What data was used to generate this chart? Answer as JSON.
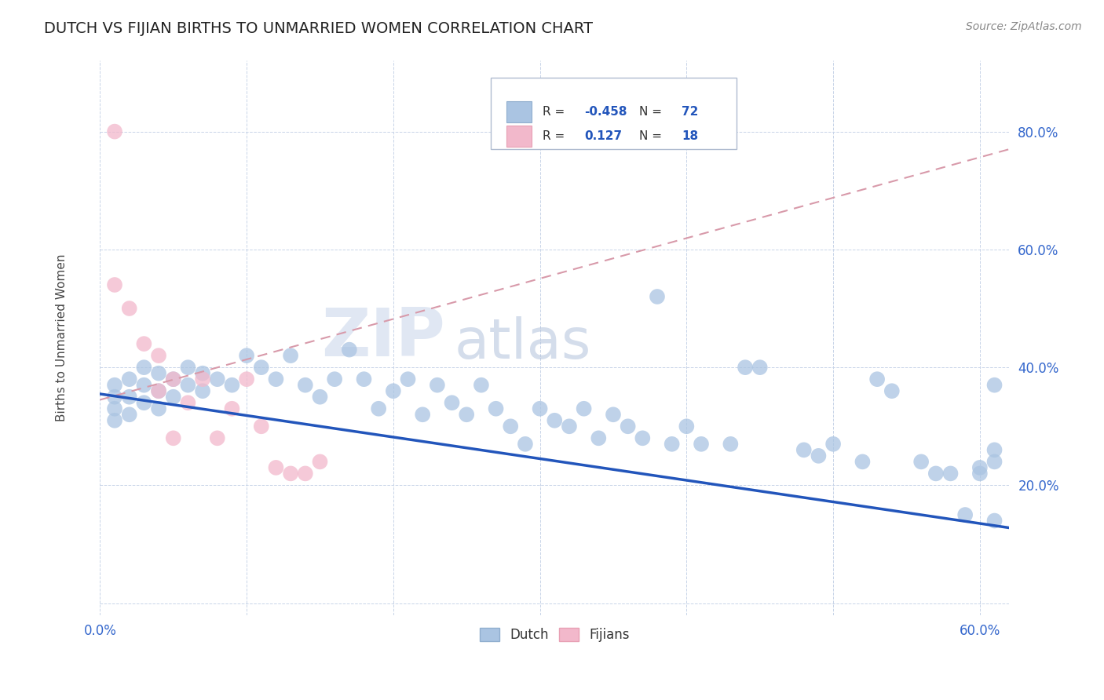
{
  "title": "DUTCH VS FIJIAN BIRTHS TO UNMARRIED WOMEN CORRELATION CHART",
  "source": "Source: ZipAtlas.com",
  "ylabel": "Births to Unmarried Women",
  "xlim": [
    0.0,
    0.62
  ],
  "ylim": [
    -0.02,
    0.92
  ],
  "xticks": [
    0.0,
    0.1,
    0.2,
    0.3,
    0.4,
    0.5,
    0.6
  ],
  "xticklabels": [
    "0.0%",
    "",
    "",
    "",
    "",
    "",
    "60.0%"
  ],
  "ytick_vals": [
    0.0,
    0.2,
    0.4,
    0.6,
    0.8
  ],
  "yticklabels": [
    "",
    "20.0%",
    "40.0%",
    "60.0%",
    "80.0%"
  ],
  "dutch_color": "#aac4e2",
  "fijian_color": "#f2b8cb",
  "dutch_line_color": "#2255bb",
  "fijian_line_color": "#d89aaa",
  "R_dutch": "-0.458",
  "N_dutch": "72",
  "R_fijian": "0.127",
  "N_fijian": "18",
  "watermark_zip": "ZIP",
  "watermark_atlas": "atlas",
  "background_color": "#ffffff",
  "grid_color": "#c8d4e8",
  "title_color": "#222222",
  "legend_r_color": "#2255bb",
  "dutch_x": [
    0.01,
    0.01,
    0.01,
    0.01,
    0.02,
    0.02,
    0.02,
    0.03,
    0.03,
    0.03,
    0.04,
    0.04,
    0.04,
    0.05,
    0.05,
    0.06,
    0.06,
    0.07,
    0.07,
    0.08,
    0.09,
    0.1,
    0.11,
    0.12,
    0.13,
    0.14,
    0.15,
    0.16,
    0.17,
    0.18,
    0.19,
    0.2,
    0.21,
    0.22,
    0.23,
    0.24,
    0.25,
    0.26,
    0.27,
    0.28,
    0.29,
    0.3,
    0.31,
    0.32,
    0.33,
    0.34,
    0.35,
    0.36,
    0.37,
    0.38,
    0.39,
    0.4,
    0.41,
    0.43,
    0.44,
    0.45,
    0.48,
    0.49,
    0.5,
    0.52,
    0.53,
    0.54,
    0.56,
    0.57,
    0.58,
    0.59,
    0.6,
    0.6,
    0.61,
    0.61,
    0.61,
    0.61
  ],
  "dutch_y": [
    0.37,
    0.35,
    0.33,
    0.31,
    0.38,
    0.35,
    0.32,
    0.4,
    0.37,
    0.34,
    0.39,
    0.36,
    0.33,
    0.38,
    0.35,
    0.4,
    0.37,
    0.39,
    0.36,
    0.38,
    0.37,
    0.42,
    0.4,
    0.38,
    0.42,
    0.37,
    0.35,
    0.38,
    0.43,
    0.38,
    0.33,
    0.36,
    0.38,
    0.32,
    0.37,
    0.34,
    0.32,
    0.37,
    0.33,
    0.3,
    0.27,
    0.33,
    0.31,
    0.3,
    0.33,
    0.28,
    0.32,
    0.3,
    0.28,
    0.52,
    0.27,
    0.3,
    0.27,
    0.27,
    0.4,
    0.4,
    0.26,
    0.25,
    0.27,
    0.24,
    0.38,
    0.36,
    0.24,
    0.22,
    0.22,
    0.15,
    0.23,
    0.22,
    0.37,
    0.26,
    0.24,
    0.14
  ],
  "fijian_x": [
    0.01,
    0.01,
    0.02,
    0.03,
    0.04,
    0.04,
    0.05,
    0.05,
    0.06,
    0.07,
    0.08,
    0.09,
    0.1,
    0.11,
    0.12,
    0.13,
    0.14,
    0.15
  ],
  "fijian_y": [
    0.8,
    0.54,
    0.5,
    0.44,
    0.42,
    0.36,
    0.38,
    0.28,
    0.34,
    0.38,
    0.28,
    0.33,
    0.38,
    0.3,
    0.23,
    0.22,
    0.22,
    0.24
  ],
  "dutch_line_x0": 0.0,
  "dutch_line_x1": 0.62,
  "dutch_line_y0": 0.355,
  "dutch_line_y1": 0.128,
  "fijian_line_x0": 0.0,
  "fijian_line_x1": 0.62,
  "fijian_line_y0": 0.345,
  "fijian_line_y1": 0.77
}
